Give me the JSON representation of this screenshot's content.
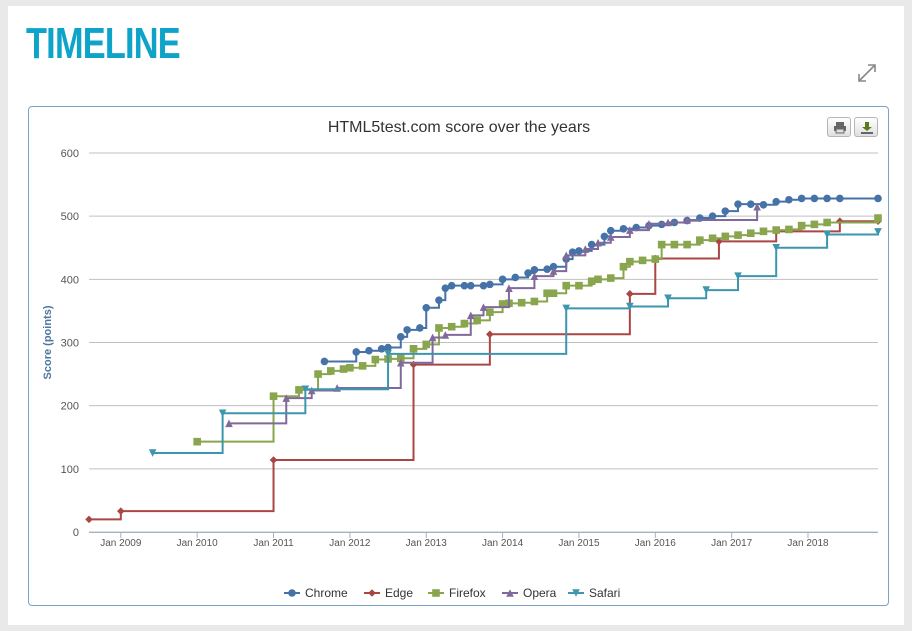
{
  "page": {
    "heading": "TIMELINE"
  },
  "toolbar": {
    "print_icon": "printer-icon",
    "download_icon": "download-icon",
    "expand_icon": "expand-arrows-icon"
  },
  "colors": {
    "heading": "#0ea3c9",
    "Chrome": "#4572a7",
    "Edge": "#aa4643",
    "Firefox": "#89a54e",
    "Opera": "#80699b",
    "Safari": "#3d96ae"
  },
  "chart_data": {
    "type": "line",
    "step": true,
    "title": "HTML5test.com score over the years",
    "xlabel": "",
    "ylabel": "Score (points)",
    "ylim": [
      0,
      600
    ],
    "xlim": [
      "2008-08",
      "2018-12"
    ],
    "yticks": [
      0,
      100,
      200,
      300,
      400,
      500,
      600
    ],
    "xticks": [
      "Jan 2009",
      "Jan 2010",
      "Jan 2011",
      "Jan 2012",
      "Jan 2013",
      "Jan 2014",
      "Jan 2015",
      "Jan 2016",
      "Jan 2017",
      "Jan 2018"
    ],
    "grid": "horizontal",
    "legend": "bottom-center",
    "series": [
      {
        "name": "Chrome",
        "marker": "circle",
        "points": [
          [
            "2011-09",
            270
          ],
          [
            "2012-02",
            285
          ],
          [
            "2012-04",
            287
          ],
          [
            "2012-06",
            290
          ],
          [
            "2012-07",
            292
          ],
          [
            "2012-09",
            309
          ],
          [
            "2012-10",
            320
          ],
          [
            "2012-12",
            323
          ],
          [
            "2013-01",
            355
          ],
          [
            "2013-03",
            367
          ],
          [
            "2013-04",
            386
          ],
          [
            "2013-05",
            390
          ],
          [
            "2013-07",
            390
          ],
          [
            "2013-08",
            390
          ],
          [
            "2013-10",
            390
          ],
          [
            "2013-11",
            392
          ],
          [
            "2014-01",
            400
          ],
          [
            "2014-03",
            403
          ],
          [
            "2014-05",
            410
          ],
          [
            "2014-06",
            415
          ],
          [
            "2014-08",
            416
          ],
          [
            "2014-09",
            420
          ],
          [
            "2014-11",
            432
          ],
          [
            "2014-12",
            443
          ],
          [
            "2015-01",
            445
          ],
          [
            "2015-03",
            455
          ],
          [
            "2015-05",
            468
          ],
          [
            "2015-06",
            477
          ],
          [
            "2015-08",
            480
          ],
          [
            "2015-10",
            482
          ],
          [
            "2015-12",
            485
          ],
          [
            "2016-02",
            487
          ],
          [
            "2016-04",
            490
          ],
          [
            "2016-06",
            493
          ],
          [
            "2016-08",
            497
          ],
          [
            "2016-10",
            500
          ],
          [
            "2016-12",
            508
          ],
          [
            "2017-02",
            519
          ],
          [
            "2017-04",
            519
          ],
          [
            "2017-06",
            518
          ],
          [
            "2017-08",
            523
          ],
          [
            "2017-10",
            526
          ],
          [
            "2017-12",
            528
          ],
          [
            "2018-02",
            528
          ],
          [
            "2018-04",
            528
          ],
          [
            "2018-06",
            528
          ],
          [
            "2018-12",
            528
          ]
        ]
      },
      {
        "name": "Edge",
        "marker": "diamond",
        "points": [
          [
            "2008-08",
            20
          ],
          [
            "2009-01",
            33
          ],
          [
            "2011-01",
            114
          ],
          [
            "2012-11",
            265
          ],
          [
            "2013-11",
            313
          ],
          [
            "2015-09",
            377
          ],
          [
            "2016-01",
            433
          ],
          [
            "2016-11",
            460
          ],
          [
            "2017-08",
            476
          ],
          [
            "2018-06",
            492
          ],
          [
            "2018-12",
            492
          ]
        ]
      },
      {
        "name": "Firefox",
        "marker": "square",
        "points": [
          [
            "2010-01",
            143
          ],
          [
            "2011-01",
            215
          ],
          [
            "2011-05",
            225
          ],
          [
            "2011-08",
            250
          ],
          [
            "2011-10",
            255
          ],
          [
            "2011-12",
            258
          ],
          [
            "2012-01",
            260
          ],
          [
            "2012-03",
            263
          ],
          [
            "2012-05",
            273
          ],
          [
            "2012-07",
            274
          ],
          [
            "2012-09",
            275
          ],
          [
            "2012-11",
            290
          ],
          [
            "2013-01",
            297
          ],
          [
            "2013-03",
            323
          ],
          [
            "2013-05",
            325
          ],
          [
            "2013-07",
            330
          ],
          [
            "2013-09",
            335
          ],
          [
            "2013-11",
            348
          ],
          [
            "2014-01",
            361
          ],
          [
            "2014-02",
            362
          ],
          [
            "2014-04",
            363
          ],
          [
            "2014-06",
            365
          ],
          [
            "2014-08",
            378
          ],
          [
            "2014-09",
            378
          ],
          [
            "2014-11",
            390
          ],
          [
            "2015-01",
            390
          ],
          [
            "2015-03",
            397
          ],
          [
            "2015-04",
            400
          ],
          [
            "2015-06",
            402
          ],
          [
            "2015-08",
            420
          ],
          [
            "2015-09",
            428
          ],
          [
            "2015-11",
            430
          ],
          [
            "2016-01",
            432
          ],
          [
            "2016-02",
            455
          ],
          [
            "2016-04",
            455
          ],
          [
            "2016-06",
            455
          ],
          [
            "2016-08",
            462
          ],
          [
            "2016-10",
            465
          ],
          [
            "2016-12",
            468
          ],
          [
            "2017-02",
            470
          ],
          [
            "2017-04",
            473
          ],
          [
            "2017-06",
            476
          ],
          [
            "2017-08",
            478
          ],
          [
            "2017-10",
            479
          ],
          [
            "2017-12",
            485
          ],
          [
            "2018-02",
            487
          ],
          [
            "2018-04",
            490
          ],
          [
            "2018-12",
            497
          ]
        ]
      },
      {
        "name": "Opera",
        "marker": "triangle",
        "points": [
          [
            "2010-06",
            172
          ],
          [
            "2011-03",
            212
          ],
          [
            "2011-07",
            224
          ],
          [
            "2011-11",
            228
          ],
          [
            "2012-09",
            268
          ],
          [
            "2013-02",
            308
          ],
          [
            "2013-04",
            312
          ],
          [
            "2013-08",
            343
          ],
          [
            "2013-10",
            356
          ],
          [
            "2014-02",
            386
          ],
          [
            "2014-06",
            405
          ],
          [
            "2014-09",
            413
          ],
          [
            "2014-11",
            438
          ],
          [
            "2015-02",
            448
          ],
          [
            "2015-04",
            458
          ],
          [
            "2015-06",
            467
          ],
          [
            "2015-09",
            478
          ],
          [
            "2015-12",
            488
          ],
          [
            "2016-03",
            490
          ],
          [
            "2016-06",
            494
          ],
          [
            "2017-05",
            515
          ]
        ]
      },
      {
        "name": "Safari",
        "marker": "triangle-down",
        "points": [
          [
            "2009-06",
            125
          ],
          [
            "2010-05",
            188
          ],
          [
            "2011-06",
            226
          ],
          [
            "2012-07",
            282
          ],
          [
            "2014-11",
            354
          ],
          [
            "2015-09",
            357
          ],
          [
            "2016-03",
            370
          ],
          [
            "2016-09",
            383
          ],
          [
            "2017-02",
            405
          ],
          [
            "2017-08",
            450
          ],
          [
            "2018-04",
            471
          ],
          [
            "2018-12",
            475
          ]
        ]
      }
    ]
  }
}
